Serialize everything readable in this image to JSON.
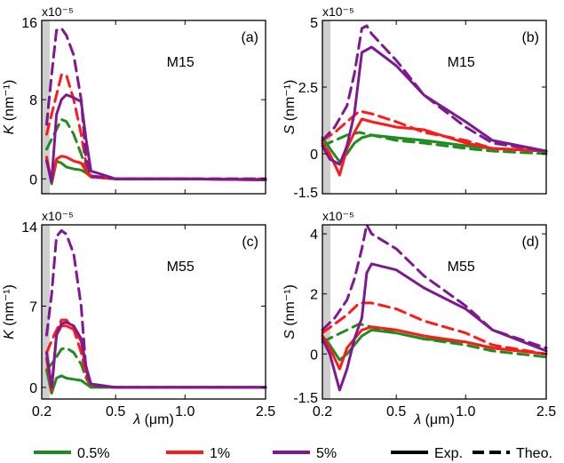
{
  "figure": {
    "x_label_symbol": "λ",
    "x_label_unit": "(μm)",
    "legend": [
      {
        "label": "0.5%",
        "color": "#1e8c1e",
        "style": "solid"
      },
      {
        "label": "1%",
        "color": "#ff1a1a",
        "style": "solid"
      },
      {
        "label": "5%",
        "color": "#7e1990",
        "style": "solid"
      },
      {
        "label": "Exp.",
        "color": "#000000",
        "style": "solid"
      },
      {
        "label": "Theo.",
        "color": "#000000",
        "style": "dashed"
      }
    ]
  },
  "chart_data": [
    {
      "type": "line",
      "panel": "(a)",
      "sample": "M15",
      "ylabel_var": "K",
      "ylabel_unit": "(nm⁻¹)",
      "multiplier": "x10⁻⁵",
      "xlim": [
        0.2,
        2.5
      ],
      "ylim": [
        -1.5,
        16
      ],
      "yticks": [
        0,
        8,
        16
      ],
      "ytick_labels": [
        "0",
        "8",
        "16"
      ],
      "xticks": [
        0.2,
        0.5,
        1.0,
        2.5
      ],
      "xtick_labels": [
        "",
        "",
        "",
        ""
      ],
      "series": [
        {
          "name": "0.5%",
          "kind": "Exp.",
          "color": "#1e8c1e",
          "x": [
            0.22,
            0.24,
            0.26,
            0.28,
            0.3,
            0.33,
            0.36,
            0.38,
            0.4,
            0.5,
            1.0,
            2.5
          ],
          "y": [
            2.0,
            -0.5,
            1.8,
            1.6,
            1.2,
            1.0,
            0.9,
            0.6,
            0.2,
            0,
            0,
            -0.1
          ]
        },
        {
          "name": "0.5%",
          "kind": "Theo.",
          "color": "#1e8c1e",
          "x": [
            0.22,
            0.25,
            0.28,
            0.3,
            0.33,
            0.36,
            0.38,
            0.4,
            0.5,
            1.0,
            2.5
          ],
          "y": [
            3.0,
            4.5,
            6.0,
            5.8,
            4.5,
            2.5,
            1.0,
            0.2,
            0,
            0,
            0
          ]
        },
        {
          "name": "1%",
          "kind": "Exp.",
          "color": "#ff1a1a",
          "x": [
            0.22,
            0.24,
            0.26,
            0.28,
            0.3,
            0.33,
            0.36,
            0.38,
            0.4,
            0.5,
            1.0,
            2.5
          ],
          "y": [
            2.2,
            -0.3,
            2.0,
            2.3,
            2.2,
            1.8,
            1.6,
            0.8,
            0.2,
            0,
            0,
            -0.1
          ]
        },
        {
          "name": "1%",
          "kind": "Theo.",
          "color": "#ff1a1a",
          "x": [
            0.22,
            0.25,
            0.28,
            0.3,
            0.33,
            0.36,
            0.38,
            0.4,
            0.5,
            1.0,
            2.5
          ],
          "y": [
            4.5,
            7.5,
            10.5,
            10.5,
            8.0,
            4.5,
            1.5,
            0.3,
            0,
            0,
            0
          ]
        },
        {
          "name": "5%",
          "kind": "Exp.",
          "color": "#7e1990",
          "x": [
            0.22,
            0.24,
            0.26,
            0.28,
            0.3,
            0.33,
            0.36,
            0.38,
            0.4,
            0.5,
            1.0,
            2.5
          ],
          "y": [
            1.8,
            -0.3,
            6.5,
            8.0,
            8.5,
            8.2,
            7.8,
            4.0,
            0.8,
            0,
            0,
            -0.1
          ]
        },
        {
          "name": "5%",
          "kind": "Theo.",
          "color": "#7e1990",
          "x": [
            0.22,
            0.24,
            0.26,
            0.28,
            0.3,
            0.33,
            0.36,
            0.38,
            0.4,
            0.5,
            1.0,
            2.5
          ],
          "y": [
            5.5,
            10.5,
            15.0,
            15.2,
            14.5,
            12.5,
            8.0,
            2.0,
            0.3,
            0,
            0,
            0
          ]
        }
      ]
    },
    {
      "type": "line",
      "panel": "(b)",
      "sample": "M15",
      "ylabel_var": "S",
      "ylabel_unit": "(nm⁻¹)",
      "multiplier": "x10⁻⁵",
      "xlim": [
        0.2,
        2.5
      ],
      "ylim": [
        -1.5,
        5
      ],
      "yticks": [
        -1.5,
        0,
        2.5,
        5
      ],
      "ytick_labels": [
        "-1.5",
        "0",
        "2.5",
        "5"
      ],
      "xticks": [
        0.2,
        0.5,
        1.0,
        2.5
      ],
      "xtick_labels": [
        "",
        "",
        "",
        ""
      ],
      "series": [
        {
          "name": "0.5%",
          "kind": "Exp.",
          "color": "#1e8c1e",
          "x": [
            0.2,
            0.23,
            0.27,
            0.3,
            0.33,
            0.36,
            0.4,
            0.5,
            0.7,
            1.0,
            1.5,
            2.5
          ],
          "y": [
            0.6,
            0.2,
            -0.3,
            0.0,
            0.4,
            0.6,
            0.7,
            0.6,
            0.5,
            0.3,
            0.2,
            0.1
          ]
        },
        {
          "name": "0.5%",
          "kind": "Theo.",
          "color": "#1e8c1e",
          "x": [
            0.2,
            0.25,
            0.3,
            0.35,
            0.4,
            0.5,
            0.7,
            1.0,
            1.5,
            2.5
          ],
          "y": [
            0.3,
            0.5,
            0.7,
            0.8,
            0.7,
            0.5,
            0.4,
            0.2,
            0.1,
            0.0
          ]
        },
        {
          "name": "1%",
          "kind": "Exp.",
          "color": "#ff1a1a",
          "x": [
            0.2,
            0.23,
            0.27,
            0.3,
            0.33,
            0.36,
            0.4,
            0.5,
            0.7,
            1.0,
            1.5,
            2.5
          ],
          "y": [
            0.4,
            0.0,
            -0.8,
            0.2,
            0.8,
            1.3,
            1.2,
            1.0,
            0.9,
            0.4,
            0.2,
            0.1
          ]
        },
        {
          "name": "1%",
          "kind": "Theo.",
          "color": "#ff1a1a",
          "x": [
            0.2,
            0.25,
            0.3,
            0.35,
            0.4,
            0.5,
            0.7,
            1.0,
            1.5,
            2.5
          ],
          "y": [
            0.5,
            0.8,
            1.2,
            1.6,
            1.5,
            1.2,
            0.8,
            0.5,
            0.2,
            0.1
          ]
        },
        {
          "name": "5%",
          "kind": "Exp.",
          "color": "#7e1990",
          "x": [
            0.2,
            0.23,
            0.27,
            0.3,
            0.33,
            0.36,
            0.4,
            0.5,
            0.7,
            1.0,
            1.5,
            2.5
          ],
          "y": [
            0.3,
            -0.2,
            -0.4,
            0.3,
            1.5,
            3.8,
            4.0,
            3.3,
            2.2,
            1.2,
            0.5,
            0.1
          ]
        },
        {
          "name": "5%",
          "kind": "Theo.",
          "color": "#7e1990",
          "x": [
            0.2,
            0.25,
            0.3,
            0.33,
            0.36,
            0.38,
            0.4,
            0.5,
            0.7,
            1.0,
            1.5,
            2.5
          ],
          "y": [
            0.5,
            1.0,
            1.8,
            3.0,
            4.7,
            4.8,
            4.5,
            3.5,
            2.2,
            1.0,
            0.4,
            0.1
          ]
        }
      ]
    },
    {
      "type": "line",
      "panel": "(c)",
      "sample": "M55",
      "ylabel_var": "K",
      "ylabel_unit": "(nm⁻¹)",
      "multiplier": "x10⁻⁵",
      "xlim": [
        0.2,
        2.5
      ],
      "ylim": [
        -1,
        14
      ],
      "yticks": [
        0,
        7,
        14
      ],
      "ytick_labels": [
        "0",
        "7",
        "14"
      ],
      "xticks": [
        0.2,
        0.5,
        1.0,
        2.5
      ],
      "xtick_labels": [
        "0.2",
        "0.5",
        "1.0",
        "2.5"
      ],
      "series": [
        {
          "name": "0.5%",
          "kind": "Exp.",
          "color": "#1e8c1e",
          "x": [
            0.22,
            0.24,
            0.26,
            0.28,
            0.3,
            0.33,
            0.36,
            0.38,
            0.4,
            0.5,
            1.0,
            2.5
          ],
          "y": [
            1.5,
            -0.5,
            0.8,
            1.0,
            0.8,
            0.7,
            0.6,
            0.3,
            0,
            0,
            0,
            0
          ]
        },
        {
          "name": "0.5%",
          "kind": "Theo.",
          "color": "#1e8c1e",
          "x": [
            0.22,
            0.25,
            0.28,
            0.3,
            0.33,
            0.36,
            0.38,
            0.4,
            0.5,
            1.0,
            2.5
          ],
          "y": [
            1.5,
            2.3,
            3.3,
            3.4,
            3.0,
            2.0,
            0.8,
            0.1,
            0,
            0,
            0
          ]
        },
        {
          "name": "1%",
          "kind": "Exp.",
          "color": "#ff1a1a",
          "x": [
            0.22,
            0.24,
            0.26,
            0.28,
            0.3,
            0.33,
            0.36,
            0.38,
            0.4,
            0.5,
            1.0,
            2.5
          ],
          "y": [
            2.5,
            -0.3,
            4.5,
            5.3,
            5.3,
            5.0,
            4.0,
            1.5,
            0.2,
            0,
            0,
            0
          ]
        },
        {
          "name": "1%",
          "kind": "Theo.",
          "color": "#ff1a1a",
          "x": [
            0.22,
            0.25,
            0.28,
            0.3,
            0.33,
            0.36,
            0.38,
            0.4,
            0.5,
            1.0,
            2.5
          ],
          "y": [
            3.0,
            4.5,
            5.8,
            5.8,
            5.0,
            3.0,
            1.0,
            0.2,
            0,
            0,
            0
          ]
        },
        {
          "name": "5%",
          "kind": "Exp.",
          "color": "#7e1990",
          "x": [
            0.22,
            0.24,
            0.26,
            0.28,
            0.3,
            0.33,
            0.36,
            0.38,
            0.4,
            0.5,
            1.0,
            2.5
          ],
          "y": [
            3.0,
            0.0,
            4.5,
            5.5,
            5.6,
            5.3,
            4.2,
            1.8,
            0.3,
            0,
            0,
            0
          ]
        },
        {
          "name": "5%",
          "kind": "Theo.",
          "color": "#7e1990",
          "x": [
            0.22,
            0.24,
            0.26,
            0.28,
            0.3,
            0.33,
            0.36,
            0.38,
            0.4,
            0.5,
            1.0,
            2.5
          ],
          "y": [
            4.5,
            8.0,
            13.0,
            13.5,
            13.2,
            11.5,
            7.0,
            1.5,
            0.2,
            0,
            0,
            0
          ]
        }
      ]
    },
    {
      "type": "line",
      "panel": "(d)",
      "sample": "M55",
      "ylabel_var": "S",
      "ylabel_unit": "(nm⁻¹)",
      "multiplier": "x10⁻⁵",
      "xlim": [
        0.2,
        2.5
      ],
      "ylim": [
        -1.5,
        4.3
      ],
      "yticks": [
        -1.5,
        0,
        2,
        4
      ],
      "ytick_labels": [
        "-1.5",
        "0",
        "2",
        "4"
      ],
      "xticks": [
        0.2,
        0.5,
        1.0,
        2.5
      ],
      "xtick_labels": [
        "0.2",
        "0.5",
        "1.0",
        "2.5"
      ],
      "series": [
        {
          "name": "0.5%",
          "kind": "Exp.",
          "color": "#1e8c1e",
          "x": [
            0.2,
            0.23,
            0.27,
            0.3,
            0.33,
            0.36,
            0.4,
            0.5,
            0.7,
            1.0,
            1.5,
            2.5
          ],
          "y": [
            0.6,
            0.3,
            -0.2,
            0.0,
            0.3,
            0.6,
            0.8,
            0.7,
            0.5,
            0.4,
            0.2,
            0.0
          ]
        },
        {
          "name": "0.5%",
          "kind": "Theo.",
          "color": "#1e8c1e",
          "x": [
            0.2,
            0.25,
            0.3,
            0.35,
            0.4,
            0.5,
            0.7,
            1.0,
            1.5,
            2.5
          ],
          "y": [
            0.4,
            0.6,
            0.8,
            1.0,
            0.9,
            0.7,
            0.5,
            0.3,
            0.1,
            -0.1
          ]
        },
        {
          "name": "1%",
          "kind": "Exp.",
          "color": "#ff1a1a",
          "x": [
            0.2,
            0.23,
            0.27,
            0.3,
            0.33,
            0.36,
            0.4,
            0.5,
            0.7,
            1.0,
            1.5,
            2.5
          ],
          "y": [
            0.6,
            0.2,
            -0.5,
            0.2,
            0.5,
            0.8,
            0.9,
            0.8,
            0.6,
            0.4,
            0.2,
            0.0
          ]
        },
        {
          "name": "1%",
          "kind": "Theo.",
          "color": "#ff1a1a",
          "x": [
            0.2,
            0.25,
            0.3,
            0.35,
            0.4,
            0.5,
            0.7,
            1.0,
            1.5,
            2.5
          ],
          "y": [
            0.7,
            1.0,
            1.3,
            1.7,
            1.7,
            1.5,
            1.1,
            0.7,
            0.3,
            0.0
          ]
        },
        {
          "name": "5%",
          "kind": "Exp.",
          "color": "#7e1990",
          "x": [
            0.2,
            0.23,
            0.27,
            0.3,
            0.33,
            0.36,
            0.38,
            0.4,
            0.5,
            0.7,
            1.0,
            1.5,
            2.5
          ],
          "y": [
            0.5,
            0.0,
            -1.2,
            -0.5,
            0.5,
            1.2,
            2.7,
            3.0,
            2.8,
            2.2,
            1.5,
            0.8,
            0.1
          ]
        },
        {
          "name": "5%",
          "kind": "Theo.",
          "color": "#7e1990",
          "x": [
            0.2,
            0.25,
            0.3,
            0.33,
            0.36,
            0.38,
            0.4,
            0.5,
            0.7,
            1.0,
            1.5,
            2.5
          ],
          "y": [
            0.8,
            1.2,
            1.8,
            2.5,
            3.5,
            4.3,
            4.0,
            3.5,
            2.6,
            1.6,
            0.8,
            0.2
          ]
        }
      ]
    }
  ]
}
